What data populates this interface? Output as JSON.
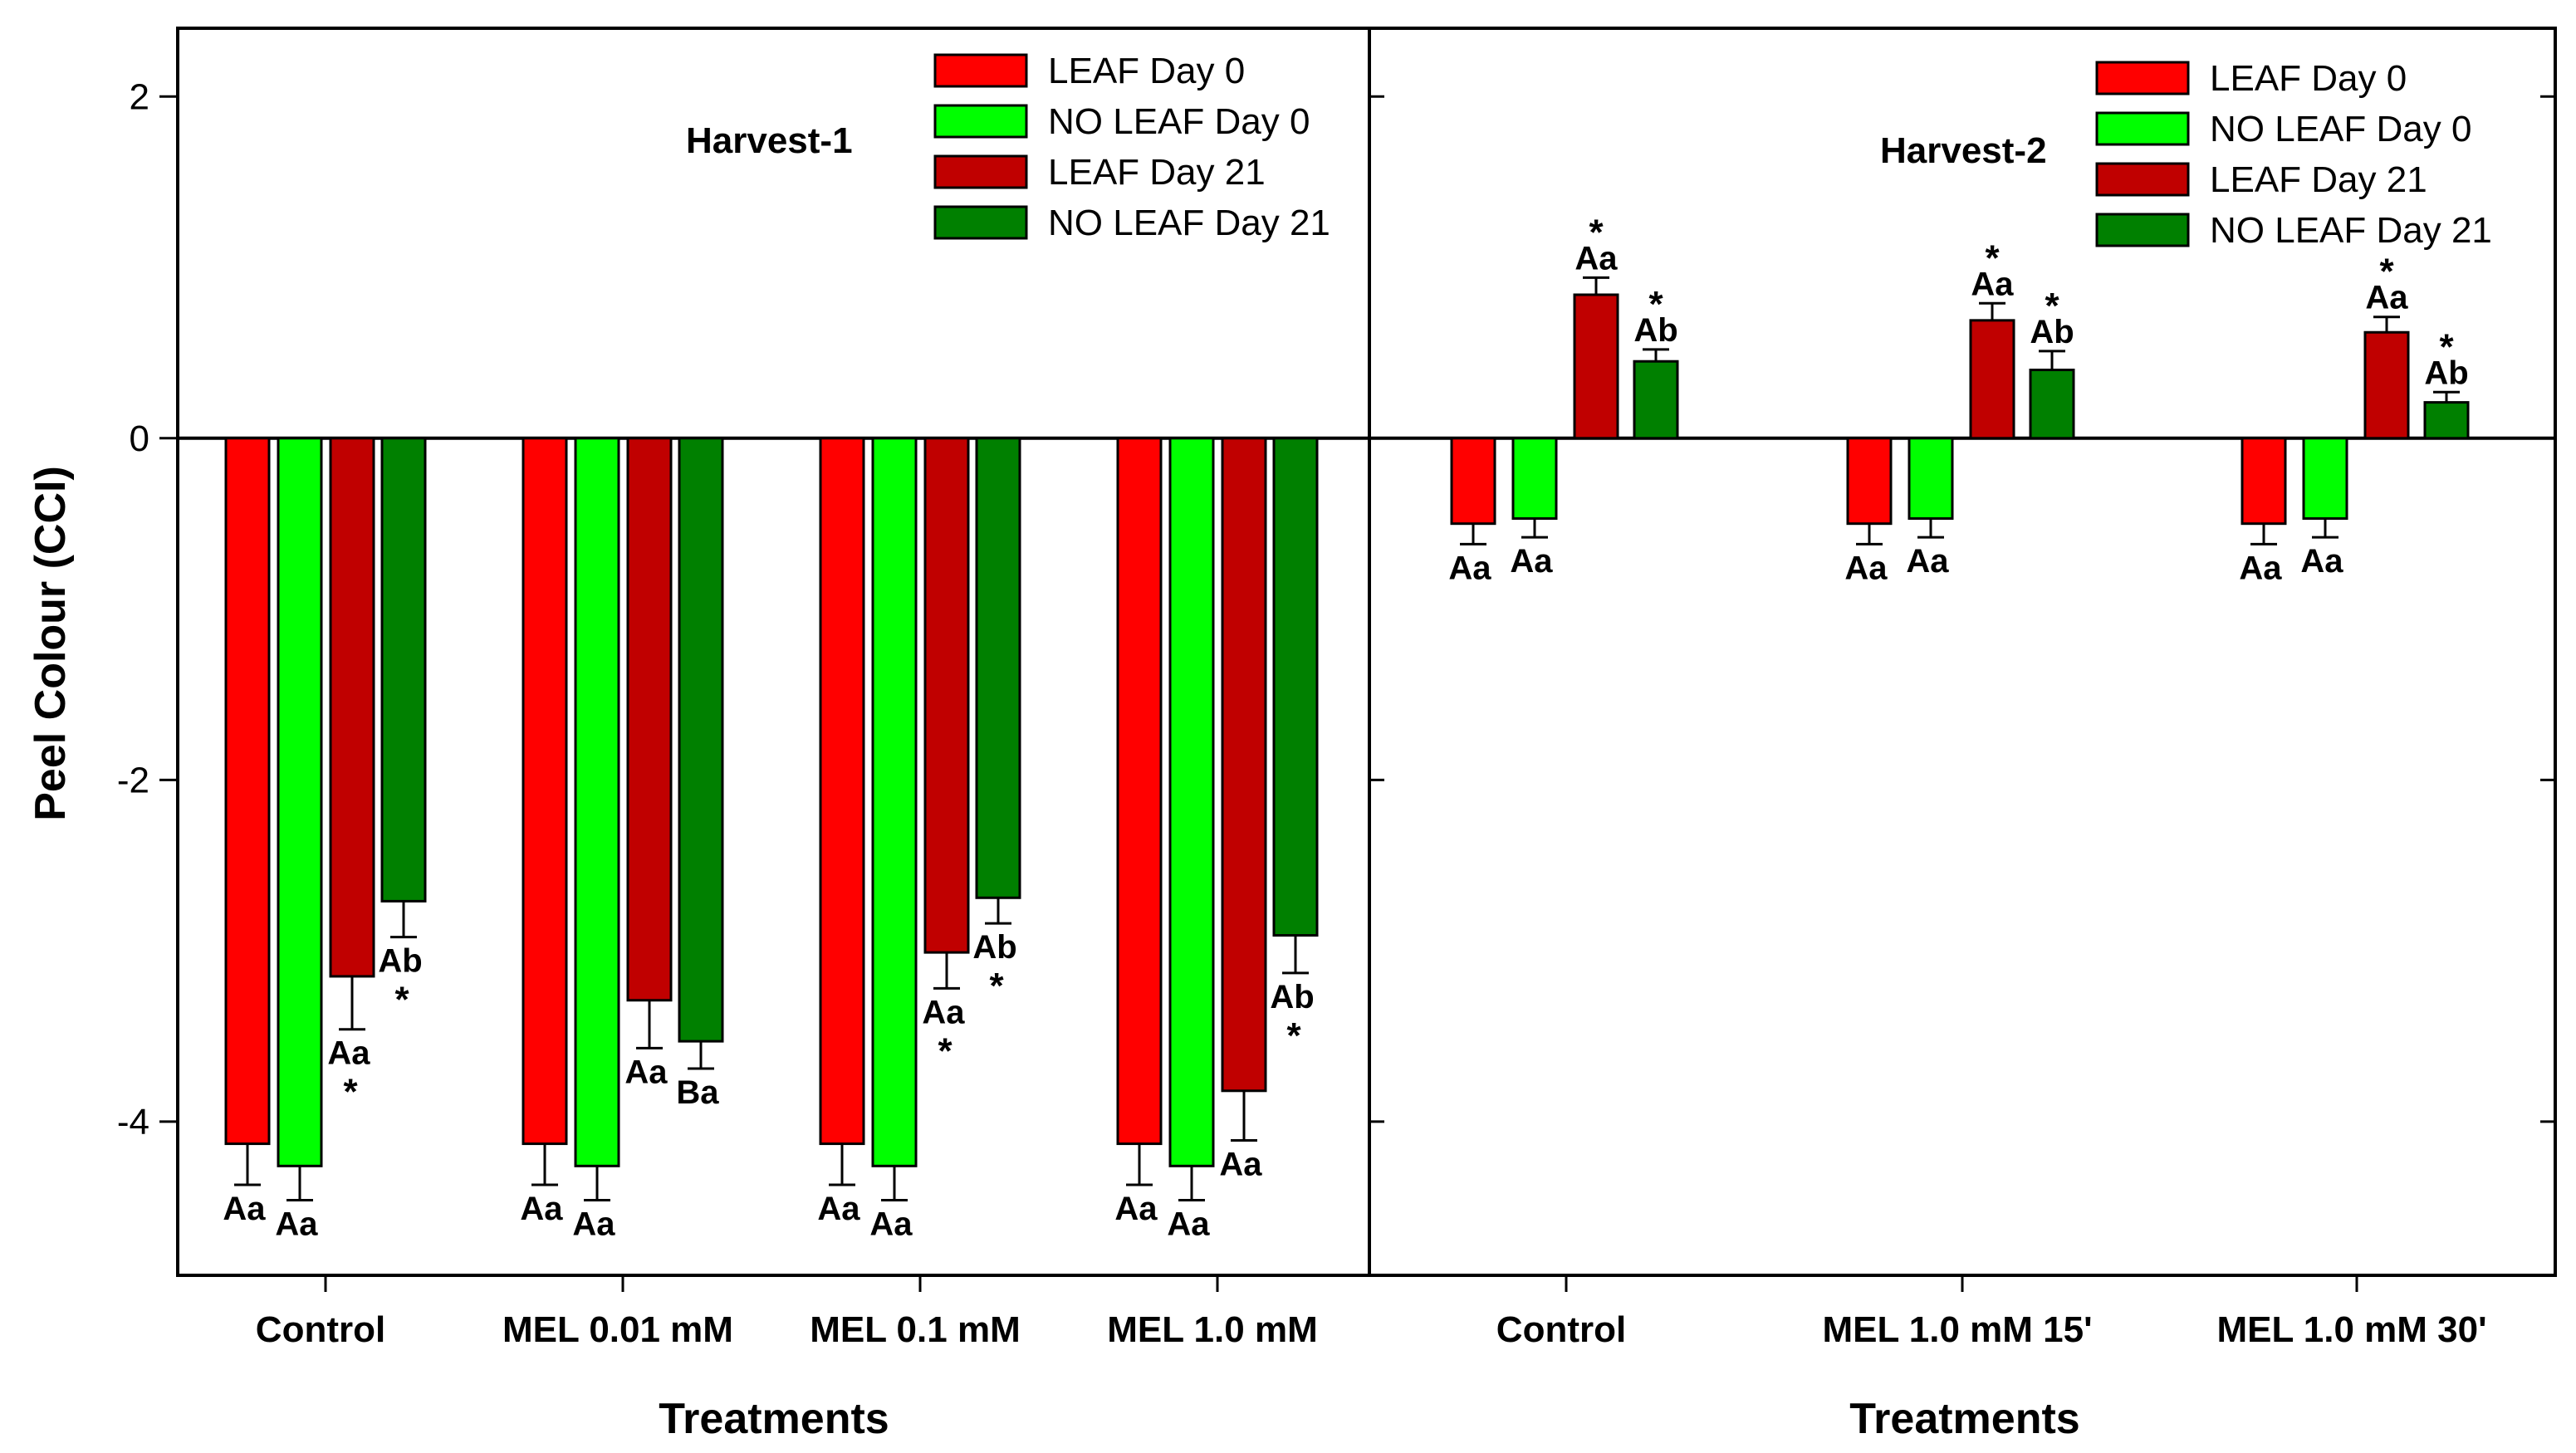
{
  "chart_data": {
    "type": "bar",
    "ylabel": "Peel Colour (CCI)",
    "ylim": [
      -4.9,
      2.4
    ],
    "yticks": [
      -4,
      -2,
      0,
      2
    ],
    "legend_position": "top-right",
    "series_names": [
      "LEAF Day 0",
      "NO LEAF Day 0",
      "LEAF Day 21",
      "NO LEAF Day 21"
    ],
    "colors": [
      "#FF0000",
      "#00FF00",
      "#C00000",
      "#008000"
    ],
    "panels": [
      {
        "title": "Harvest-1",
        "xlabel": "Treatments",
        "categories": [
          "Control",
          "MEL 0.01 mM",
          "MEL 0.1 mM",
          "MEL 1.0 mM"
        ],
        "series": [
          {
            "name": "LEAF Day 0",
            "values": [
              -4.13,
              -4.13,
              -4.13,
              -4.13
            ],
            "errors": [
              0.24,
              0.24,
              0.24,
              0.24
            ],
            "labels": [
              "Aa",
              "Aa",
              "Aa",
              "Aa"
            ],
            "stars": [
              false,
              false,
              false,
              false
            ]
          },
          {
            "name": "NO LEAF Day 0",
            "values": [
              -4.26,
              -4.26,
              -4.26,
              -4.26
            ],
            "errors": [
              0.2,
              0.2,
              0.2,
              0.2
            ],
            "labels": [
              "Aa",
              "Aa",
              "Aa",
              "Aa"
            ],
            "stars": [
              false,
              false,
              false,
              false
            ]
          },
          {
            "name": "LEAF Day 21",
            "values": [
              -3.15,
              -3.29,
              -3.01,
              -3.82
            ],
            "errors": [
              0.31,
              0.28,
              0.21,
              0.29
            ],
            "labels": [
              "Aa",
              "Aa",
              "Aa",
              "Aa"
            ],
            "stars": [
              true,
              false,
              true,
              false
            ]
          },
          {
            "name": "NO LEAF Day 21",
            "values": [
              -2.71,
              -3.53,
              -2.69,
              -2.91
            ],
            "errors": [
              0.21,
              0.16,
              0.15,
              0.22
            ],
            "labels": [
              "Ab",
              "Ba",
              "Ab",
              "Ab"
            ],
            "stars": [
              true,
              false,
              true,
              true
            ]
          }
        ]
      },
      {
        "title": "Harvest-2",
        "xlabel": "Treatments",
        "categories": [
          "Control",
          "MEL 1.0  mM 15'",
          "MEL 1.0 mM 30'"
        ],
        "series": [
          {
            "name": "LEAF Day 0",
            "values": [
              -0.5,
              -0.5,
              -0.5
            ],
            "errors": [
              0.12,
              0.12,
              0.12
            ],
            "labels": [
              "Aa",
              "Aa",
              "Aa"
            ],
            "stars": [
              false,
              false,
              false
            ]
          },
          {
            "name": "NO LEAF Day 0",
            "values": [
              -0.47,
              -0.47,
              -0.47
            ],
            "errors": [
              0.11,
              0.11,
              0.11
            ],
            "labels": [
              "Aa",
              "Aa",
              "Aa"
            ],
            "stars": [
              false,
              false,
              false
            ]
          },
          {
            "name": "LEAF Day 21",
            "values": [
              0.84,
              0.69,
              0.62
            ],
            "errors": [
              0.1,
              0.1,
              0.09
            ],
            "labels": [
              "Aa",
              "Aa",
              "Aa"
            ],
            "stars": [
              true,
              true,
              true
            ]
          },
          {
            "name": "NO LEAF Day 21",
            "values": [
              0.45,
              0.4,
              0.21
            ],
            "errors": [
              0.07,
              0.11,
              0.06
            ],
            "labels": [
              "Ab",
              "Ab",
              "Ab"
            ],
            "stars": [
              true,
              true,
              true
            ]
          }
        ]
      }
    ]
  }
}
